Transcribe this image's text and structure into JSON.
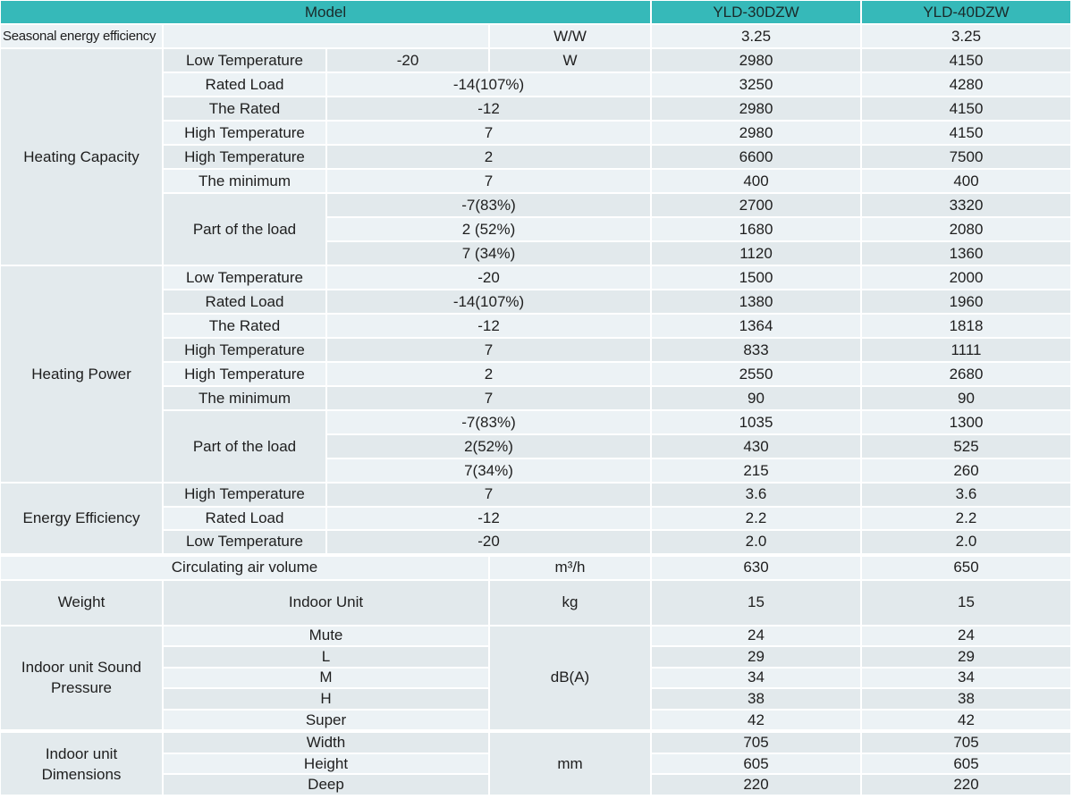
{
  "header": {
    "model": "Model",
    "models": [
      "YLD-30DZW",
      "YLD-40DZW"
    ]
  },
  "seasonal": {
    "label": "Seasonal energy efficiency",
    "unit": "W/W",
    "values": [
      "3.25",
      "3.25"
    ]
  },
  "heating_capacity": {
    "label": "Heating Capacity",
    "unit": "W",
    "rows": [
      {
        "item": "Low Temperature",
        "condition": "-20",
        "values": [
          "2980",
          "4150"
        ]
      },
      {
        "item": "Rated Load",
        "condition": "-14(107%)",
        "values": [
          "3250",
          "4280"
        ]
      },
      {
        "item": "The Rated",
        "condition": "-12",
        "values": [
          "2980",
          "4150"
        ]
      },
      {
        "item": "High Temperature",
        "condition": "7",
        "values": [
          "2980",
          "4150"
        ]
      },
      {
        "item": "High Temperature",
        "condition": "2",
        "values": [
          "6600",
          "7500"
        ]
      },
      {
        "item": "The minimum",
        "condition": "7",
        "values": [
          "400",
          "400"
        ]
      },
      {
        "item": "Part of the load",
        "condition": "-7(83%)",
        "values": [
          "2700",
          "3320"
        ]
      },
      {
        "condition": "2 (52%)",
        "values": [
          "1680",
          "2080"
        ]
      },
      {
        "condition": "7 (34%)",
        "values": [
          "1120",
          "1360"
        ]
      }
    ]
  },
  "heating_power": {
    "label": "Heating Power",
    "rows": [
      {
        "item": "Low Temperature",
        "condition": "-20",
        "values": [
          "1500",
          "2000"
        ]
      },
      {
        "item": "Rated Load",
        "condition": "-14(107%)",
        "values": [
          "1380",
          "1960"
        ]
      },
      {
        "item": "The Rated",
        "condition": "-12",
        "values": [
          "1364",
          "1818"
        ]
      },
      {
        "item": "High Temperature",
        "condition": "7",
        "values": [
          "833",
          "1111"
        ]
      },
      {
        "item": "High Temperature",
        "condition": "2",
        "values": [
          "2550",
          "2680"
        ]
      },
      {
        "item": "The minimum",
        "condition": "7",
        "values": [
          "90",
          "90"
        ]
      },
      {
        "item": "Part of the load",
        "condition": "-7(83%)",
        "values": [
          "1035",
          "1300"
        ]
      },
      {
        "condition": "2(52%)",
        "values": [
          "430",
          "525"
        ]
      },
      {
        "condition": "7(34%)",
        "values": [
          "215",
          "260"
        ]
      }
    ]
  },
  "energy_efficiency": {
    "label": "Energy Efficiency",
    "rows": [
      {
        "item": "High Temperature",
        "condition": "7",
        "values": [
          "3.6",
          "3.6"
        ]
      },
      {
        "item": "Rated Load",
        "condition": "-12",
        "values": [
          "2.2",
          "2.2"
        ]
      },
      {
        "item": "Low Temperature",
        "condition": "-20",
        "values": [
          "2.0",
          "2.0"
        ]
      }
    ]
  },
  "air_volume": {
    "label": "Circulating air volume",
    "unit": "m³/h",
    "values": [
      "630",
      "650"
    ]
  },
  "weight": {
    "label": "Weight",
    "item": "Indoor Unit",
    "unit": "kg",
    "values": [
      "15",
      "15"
    ]
  },
  "sound": {
    "label": "Indoor unit Sound Pressure",
    "unit": "dB(A)",
    "rows": [
      {
        "item": "Mute",
        "values": [
          "24",
          "24"
        ]
      },
      {
        "item": "L",
        "values": [
          "29",
          "29"
        ]
      },
      {
        "item": "M",
        "values": [
          "34",
          "34"
        ]
      },
      {
        "item": "H",
        "values": [
          "38",
          "38"
        ]
      },
      {
        "item": "Super",
        "values": [
          "42",
          "42"
        ]
      }
    ]
  },
  "dimensions": {
    "label": "Indoor unit Dimensions",
    "unit": "mm",
    "rows": [
      {
        "item": "Width",
        "values": [
          "705",
          "705"
        ]
      },
      {
        "item": "Height",
        "values": [
          "605",
          "605"
        ]
      },
      {
        "item": "Deep",
        "values": [
          "220",
          "220"
        ]
      }
    ]
  },
  "colors": {
    "header": "#36b9b9",
    "row_light": "#ecf2f5",
    "row_dark": "#e2e9ec"
  }
}
